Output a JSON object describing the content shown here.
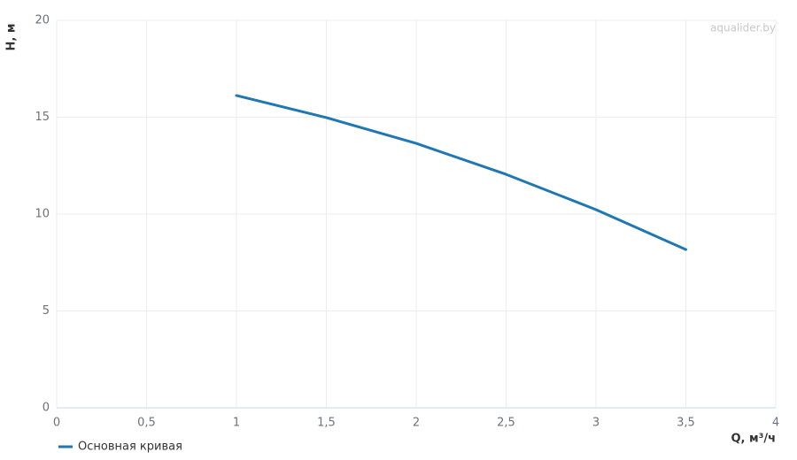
{
  "chart_data": {
    "type": "line",
    "watermark": "aqualider.by",
    "x_label": "Q, м³/ч",
    "y_label": "H, м",
    "x": [
      1,
      1.5,
      2,
      2.5,
      3,
      3.5
    ],
    "series": [
      {
        "name": "Основная кривая",
        "color": "#1f77b4",
        "values": [
          16.12,
          14.98,
          13.65,
          12.05,
          10.23,
          8.17
        ]
      }
    ],
    "xlim": [
      0,
      4
    ],
    "xticks": [
      0,
      {
        "value": 0.5,
        "label": "0,5"
      },
      1,
      {
        "value": 1.5,
        "label": "1,5"
      },
      2,
      {
        "value": 2.5,
        "label": "2,5"
      },
      3,
      {
        "value": 3.5,
        "label": "3,5"
      },
      4
    ],
    "ylim": [
      0,
      20
    ],
    "yticks": [
      0,
      5,
      10,
      15,
      20
    ],
    "grid": true,
    "legend": "bottom-left"
  }
}
